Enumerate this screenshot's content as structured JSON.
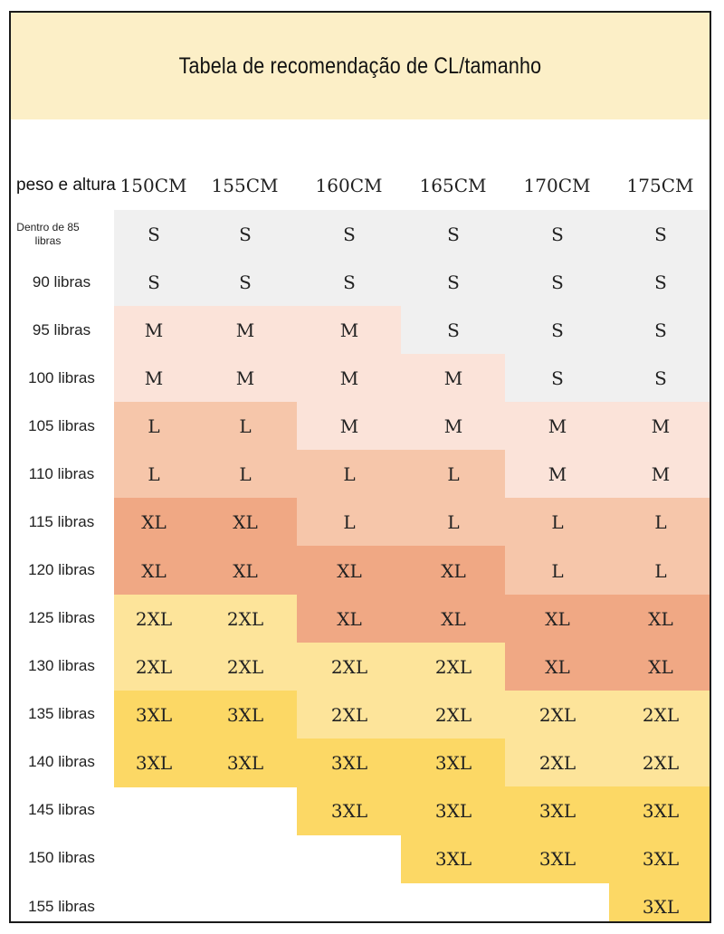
{
  "title": "Tabela de recomendação de CL/tamanho",
  "corner_label": "peso e altura",
  "columns": [
    "150CM",
    "155CM",
    "160CM",
    "165CM",
    "170CM",
    "175CM"
  ],
  "rows": [
    {
      "label": "Dentro de 85 libras",
      "sizes": [
        "S",
        "S",
        "S",
        "S",
        "S",
        "S"
      ]
    },
    {
      "label": "90 libras",
      "sizes": [
        "S",
        "S",
        "S",
        "S",
        "S",
        "S"
      ]
    },
    {
      "label": "95 libras",
      "sizes": [
        "M",
        "M",
        "M",
        "S",
        "S",
        "S"
      ]
    },
    {
      "label": "100 libras",
      "sizes": [
        "M",
        "M",
        "M",
        "M",
        "S",
        "S"
      ]
    },
    {
      "label": "105 libras",
      "sizes": [
        "L",
        "L",
        "M",
        "M",
        "M",
        "M"
      ]
    },
    {
      "label": "110 libras",
      "sizes": [
        "L",
        "L",
        "L",
        "L",
        "M",
        "M"
      ]
    },
    {
      "label": "115 libras",
      "sizes": [
        "XL",
        "XL",
        "L",
        "L",
        "L",
        "L"
      ]
    },
    {
      "label": "120 libras",
      "sizes": [
        "XL",
        "XL",
        "XL",
        "XL",
        "L",
        "L"
      ]
    },
    {
      "label": "125 libras",
      "sizes": [
        "2XL",
        "2XL",
        "XL",
        "XL",
        "XL",
        "XL"
      ]
    },
    {
      "label": "130 libras",
      "sizes": [
        "2XL",
        "2XL",
        "2XL",
        "2XL",
        "XL",
        "XL"
      ]
    },
    {
      "label": "135 libras",
      "sizes": [
        "3XL",
        "3XL",
        "2XL",
        "2XL",
        "2XL",
        "2XL"
      ]
    },
    {
      "label": "140 libras",
      "sizes": [
        "3XL",
        "3XL",
        "3XL",
        "3XL",
        "2XL",
        "2XL"
      ]
    },
    {
      "label": "145 libras",
      "sizes": [
        "",
        "",
        "3XL",
        "3XL",
        "3XL",
        "3XL"
      ]
    },
    {
      "label": "150 libras",
      "sizes": [
        "",
        "",
        "",
        "3XL",
        "3XL",
        "3XL"
      ]
    },
    {
      "label": "155 libras",
      "sizes": [
        "",
        "",
        "",
        "",
        "",
        "3XL"
      ]
    }
  ],
  "colors": {
    "banner": "#fcefc7",
    "S": "#f0f0f0",
    "M": "#fbe3d9",
    "L": "#f6c6aa",
    "XL": "#f0a884",
    "2XL": "#fde49a",
    "3XL": "#fcd865"
  }
}
